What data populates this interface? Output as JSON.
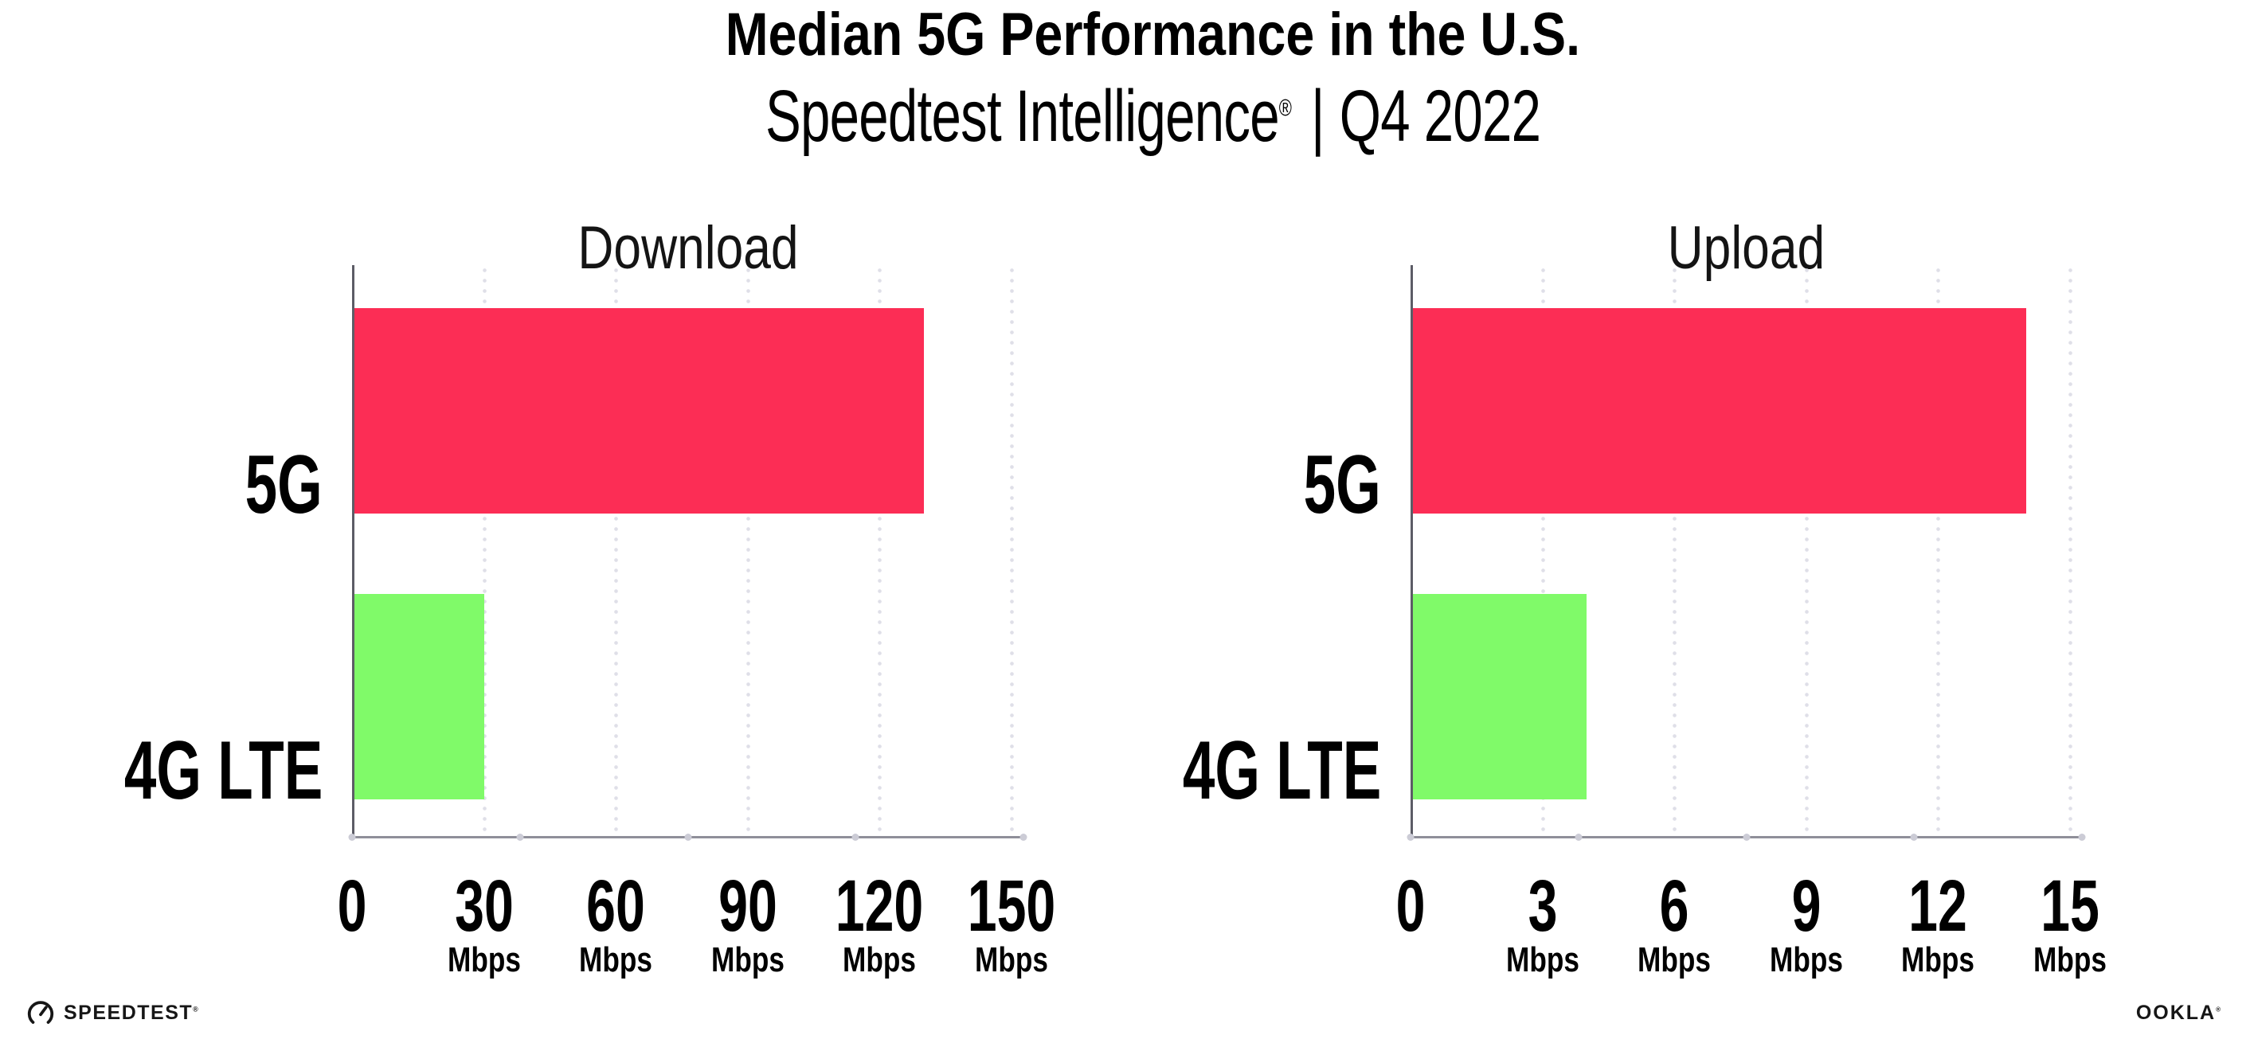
{
  "header": {
    "title": "Median 5G Performance in the U.S.",
    "subtitle_brand": "Speedtest Intelligence",
    "subtitle_reg": "®",
    "subtitle_sep": "|",
    "subtitle_period": "Q4 2022"
  },
  "chart_data": [
    {
      "type": "bar",
      "orientation": "horizontal",
      "title": "Download",
      "categories": [
        "5G",
        "4G LTE"
      ],
      "values": [
        130,
        30
      ],
      "unit": "Mbps",
      "xlim": [
        0,
        150
      ],
      "tick_values": [
        0,
        30,
        60,
        90,
        120,
        150
      ],
      "tick_labels": [
        "0",
        "30",
        "60",
        "90",
        "120",
        "150"
      ],
      "bar_colors": [
        "#FC2D55",
        "#80FA69"
      ],
      "grid": "dotted-vertical-light",
      "legend": "none"
    },
    {
      "type": "bar",
      "orientation": "horizontal",
      "title": "Upload",
      "categories": [
        "5G",
        "4G LTE"
      ],
      "values": [
        14,
        4
      ],
      "unit": "Mbps",
      "xlim": [
        0,
        15
      ],
      "tick_values": [
        0,
        3,
        6,
        9,
        12,
        15
      ],
      "tick_labels": [
        "0",
        "3",
        "6",
        "9",
        "12",
        "15"
      ],
      "bar_colors": [
        "#FC2D55",
        "#80FA69"
      ],
      "grid": "dotted-vertical-light",
      "legend": "none"
    }
  ],
  "footer": {
    "speedtest_wordmark": "SPEEDTEST",
    "speedtest_mark": "®",
    "ookla_wordmark": "OOKLA",
    "ookla_mark": "®"
  }
}
